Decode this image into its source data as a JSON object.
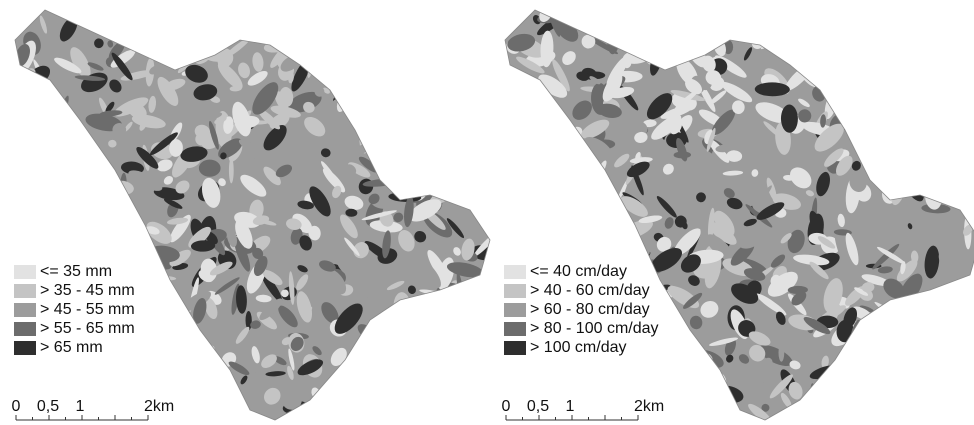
{
  "maps": [
    {
      "legend": [
        {
          "label": "<= 35 mm",
          "color": "#e2e2e2"
        },
        {
          "label": "> 35 - 45 mm",
          "color": "#c4c4c4"
        },
        {
          "label": "> 45 - 55 mm",
          "color": "#9c9c9c"
        },
        {
          "label": "> 55 - 65 mm",
          "color": "#6c6c6c"
        },
        {
          "label": "> 65 mm",
          "color": "#2e2e2e"
        }
      ],
      "scale_bar": [
        "0",
        "0,5",
        "1",
        "2km"
      ]
    },
    {
      "legend": [
        {
          "label": "<= 40 cm/day",
          "color": "#e2e2e2"
        },
        {
          "label": "> 40 - 60 cm/day",
          "color": "#c4c4c4"
        },
        {
          "label": "> 60 - 80 cm/day",
          "color": "#9c9c9c"
        },
        {
          "label": "> 80 - 100 cm/day",
          "color": "#6c6c6c"
        },
        {
          "label": "> 100 cm/day",
          "color": "#2e2e2e"
        }
      ],
      "scale_bar": [
        "0",
        "0,5",
        "1",
        "2km"
      ]
    }
  ]
}
